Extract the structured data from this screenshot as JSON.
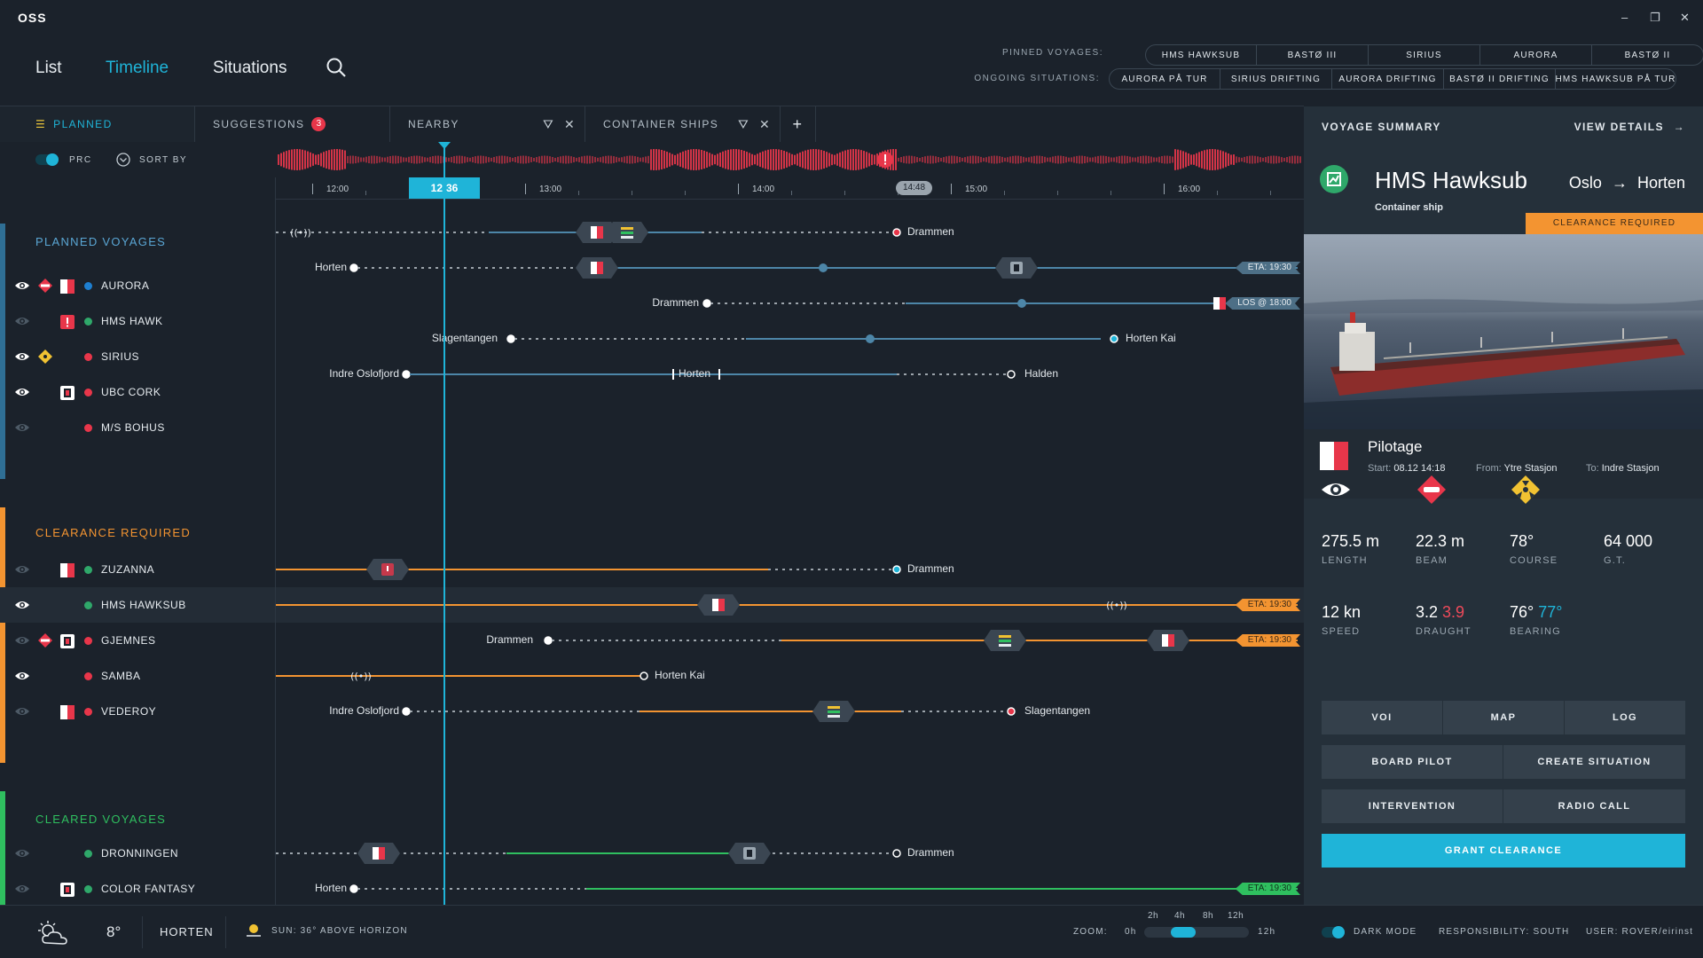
{
  "app": {
    "name": "OSS"
  },
  "nav": {
    "list": "List",
    "timeline": "Timeline",
    "situations": "Situations"
  },
  "header": {
    "pinned_label": "PINNED VOYAGES:",
    "pinned": [
      "HMS HAWKSUB",
      "BASTØ III",
      "SIRIUS",
      "AURORA",
      "BASTØ II"
    ],
    "ongoing_label": "ONGOING SITUATIONS:",
    "ongoing": [
      "AURORA PÅ TUR",
      "SIRIUS DRIFTING",
      "AURORA DRIFTING",
      "BASTØ II DRIFTING",
      "HMS HAWKSUB PÅ TUR"
    ]
  },
  "tabs": {
    "planned": "PLANNED",
    "suggestions": "SUGGESTIONS",
    "suggestions_count": "3",
    "nearby": "NEARBY",
    "container": "CONTAINER SHIPS",
    "add": "+"
  },
  "controls": {
    "prc": "PRC",
    "sort_by": "SORT BY"
  },
  "timeline": {
    "hours": [
      "12:00",
      "13:00",
      "14:00",
      "15:00",
      "16:00"
    ],
    "current_time": "12:36",
    "marker_time": "14:48"
  },
  "groups": {
    "planned": {
      "title": "PLANNED VOYAGES",
      "color": "#2f7fb5",
      "vessels": [
        {
          "name": "AURORA",
          "dot": "#1e7fd0",
          "from": "",
          "to": "Drammen",
          "mid": ""
        },
        {
          "name": "HMS HAWK",
          "dot": "#2fa86a",
          "from": "Horten",
          "to": "",
          "mid": "",
          "eta": "ETA: 19:30"
        },
        {
          "name": "SIRIUS",
          "dot": "#e8364a",
          "from": "Drammen",
          "to": "",
          "mid": "",
          "eta": "LOS @ 18:00"
        },
        {
          "name": "UBC CORK",
          "dot": "#e8364a",
          "from": "Slagentangen",
          "to": "Horten Kai",
          "mid": ""
        },
        {
          "name": "M/S BOHUS",
          "dot": "#e8364a",
          "from": "Indre Oslofjord",
          "to": "Halden",
          "mid": "Horten"
        }
      ]
    },
    "clearance": {
      "title": "CLEARANCE REQUIRED",
      "color": "#f39431",
      "vessels": [
        {
          "name": "ZUZANNA",
          "dot": "#2fa86a",
          "from": "",
          "to": "Drammen",
          "mid": ""
        },
        {
          "name": "HMS HAWKSUB",
          "dot": "#2fa86a",
          "from": "",
          "to": "",
          "mid": "",
          "eta": "ETA: 19:30"
        },
        {
          "name": "GJEMNES",
          "dot": "#e8364a",
          "from": "Drammen",
          "to": "",
          "mid": "",
          "eta": "ETA: 19:30"
        },
        {
          "name": "SAMBA",
          "dot": "#e8364a",
          "from": "",
          "to": "Horten Kai",
          "mid": ""
        },
        {
          "name": "VEDEROY",
          "dot": "#e8364a",
          "from": "Indre Oslofjord",
          "to": "Slagentangen",
          "mid": ""
        }
      ]
    },
    "cleared": {
      "title": "CLEARED VOYAGES",
      "color": "#2fbf5f",
      "vessels": [
        {
          "name": "DRONNINGEN",
          "dot": "#2fa86a",
          "from": "",
          "to": "Drammen",
          "mid": ""
        },
        {
          "name": "COLOR FANTASY",
          "dot": "#2fa86a",
          "from": "Horten",
          "to": "",
          "mid": "",
          "eta": "ETA: 19:30"
        }
      ]
    }
  },
  "summary": {
    "title": "VOYAGE SUMMARY",
    "view_details": "VIEW DETAILS",
    "ship_name": "HMS Hawksub",
    "ship_type": "Container ship",
    "from": "Oslo",
    "to": "Horten",
    "banner": "CLEARANCE REQUIRED",
    "pilotage": {
      "title": "Pilotage",
      "start_label": "Start:",
      "start": "08.12  14:18",
      "from_label": "From:",
      "from": "Ytre Stasjon",
      "to_label": "To:",
      "to": "Indre Stasjon"
    },
    "stats": [
      {
        "value": "275.5 m",
        "label": "LENGTH"
      },
      {
        "value": "22.3 m",
        "label": "BEAM"
      },
      {
        "value": "78°",
        "label": "COURSE"
      },
      {
        "value": "64 000",
        "label": "G.T."
      },
      {
        "value": "12 kn",
        "label": "SPEED"
      },
      {
        "value": "3.2",
        "value_alt": "3.9",
        "label": "DRAUGHT"
      },
      {
        "value": "76°",
        "value_alt": "77°",
        "label": "BEARING"
      }
    ],
    "buttons": {
      "voi": "VOI",
      "map": "MAP",
      "log": "LOG",
      "board_pilot": "BOARD PILOT",
      "create_situation": "CREATE SITUATION",
      "intervention": "INTERVENTION",
      "radio_call": "RADIO CALL",
      "grant": "GRANT CLEARANCE"
    }
  },
  "footer": {
    "temperature": "8°",
    "location": "HORTEN",
    "sun": "SUN: 36° ABOVE HORIZON",
    "zoom_label": "ZOOM:",
    "zoom_min": "0h",
    "zoom_max": "12h",
    "zoom_ticks": [
      "2h",
      "4h",
      "8h",
      "12h"
    ],
    "dark_mode": "DARK MODE",
    "responsibility": "RESPONSIBILITY: SOUTH",
    "user": "USER: ROVER/eirinst"
  },
  "colors": {
    "accent": "#1fb4d8",
    "planned": "#2f7fb5",
    "clearance": "#f39431",
    "cleared": "#2fbf5f",
    "alert": "#e8364a"
  }
}
